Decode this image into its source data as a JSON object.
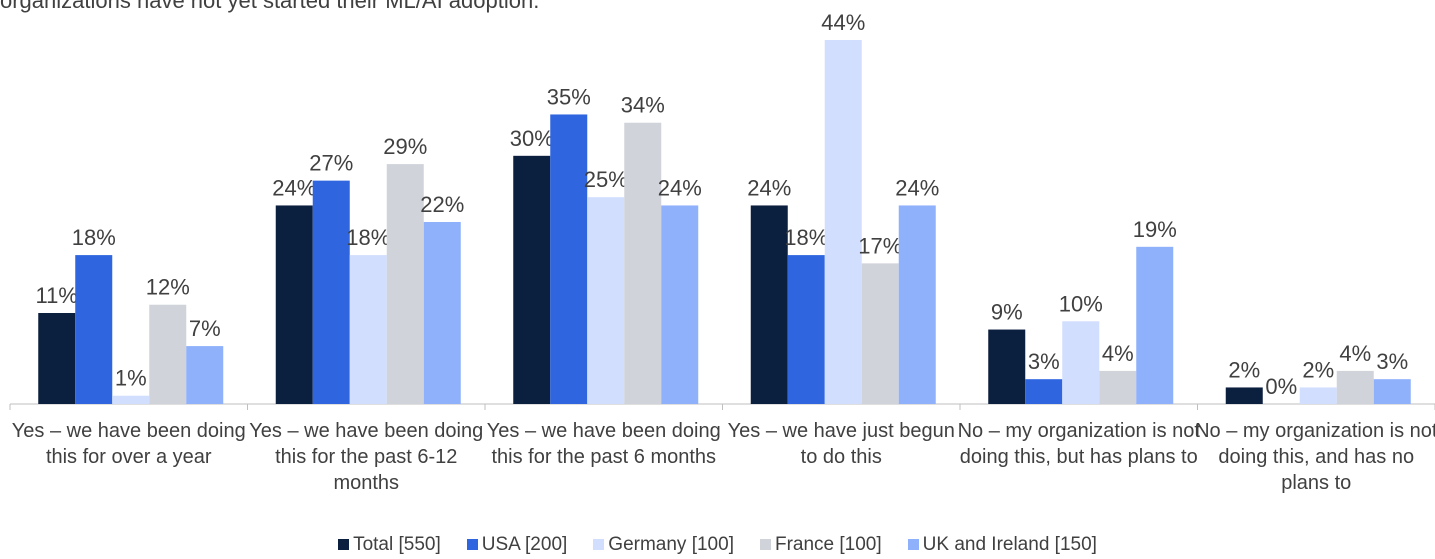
{
  "chart_data": {
    "type": "bar",
    "subtitle": "organizations have not yet started their ML/AI adoption.",
    "categories": [
      "Yes – we have been doing this for over a year",
      "Yes – we have been doing this for the past 6-12 months",
      "Yes – we have been doing this for the past 6 months",
      "Yes – we have just begun to do this",
      "No – my organization is not doing this, but has plans to",
      "No – my organization is not doing this, and has no plans to"
    ],
    "series": [
      {
        "name": "Total [550]",
        "color": "#0b1f3f",
        "values": [
          11,
          24,
          30,
          24,
          9,
          2
        ],
        "value_labels": [
          "11%",
          "24%",
          "30%",
          "24%",
          "9%",
          "2%"
        ]
      },
      {
        "name": "USA [200]",
        "color": "#2f66e0",
        "values": [
          18,
          27,
          35,
          18,
          3,
          0
        ],
        "value_labels": [
          "18%",
          "27%",
          "35%",
          "18%",
          "3%",
          "0%"
        ]
      },
      {
        "name": "Germany [100]",
        "color": "#d1defd",
        "values": [
          1,
          18,
          25,
          44,
          10,
          2
        ],
        "value_labels": [
          "1%",
          "18%",
          "25%",
          "44%",
          "10%",
          "2%"
        ]
      },
      {
        "name": "France [100]",
        "color": "#d0d3da",
        "values": [
          12,
          29,
          34,
          17,
          4,
          4
        ],
        "value_labels": [
          "12%",
          "29%",
          "34%",
          "17%",
          "4%",
          "4%"
        ]
      },
      {
        "name": "UK and Ireland [150]",
        "color": "#8fb0fb",
        "values": [
          7,
          22,
          24,
          24,
          19,
          3
        ],
        "value_labels": [
          "7%",
          "22%",
          "24%",
          "24%",
          "19%",
          "3%"
        ]
      }
    ]
  }
}
